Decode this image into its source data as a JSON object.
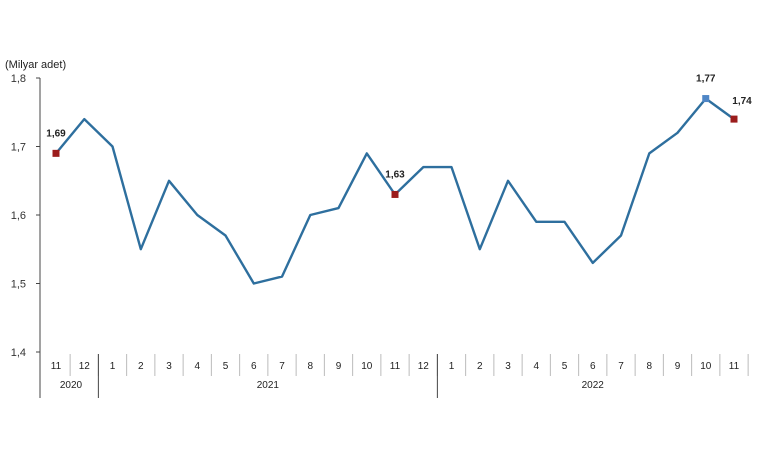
{
  "chart_data": {
    "type": "line",
    "title": "",
    "unit_label": "(Milyar adet)",
    "xlabel": "",
    "ylabel": "",
    "ylim": [
      1.4,
      1.8
    ],
    "yticks": [
      "1,4",
      "1,5",
      "1,6",
      "1,7",
      "1,8"
    ],
    "grid": false,
    "categories": [
      "11",
      "12",
      "1",
      "2",
      "3",
      "4",
      "5",
      "6",
      "7",
      "8",
      "9",
      "10",
      "11",
      "12",
      "1",
      "2",
      "3",
      "4",
      "5",
      "6",
      "7",
      "8",
      "9",
      "10",
      "11"
    ],
    "year_groups": [
      {
        "label": "2020",
        "start": 0,
        "end": 1
      },
      {
        "label": "2021",
        "start": 2,
        "end": 13
      },
      {
        "label": "2022",
        "start": 14,
        "end": 24
      }
    ],
    "series": [
      {
        "color": "#2e6f9e",
        "values": [
          1.69,
          1.74,
          1.7,
          1.55,
          1.65,
          1.6,
          1.57,
          1.5,
          1.51,
          1.6,
          1.61,
          1.69,
          1.63,
          1.67,
          1.67,
          1.55,
          1.65,
          1.59,
          1.59,
          1.53,
          1.57,
          1.69,
          1.72,
          1.77,
          1.74
        ]
      }
    ],
    "annotations": [
      {
        "index": 0,
        "label": "1,69",
        "marker_color": "#9b1c1c"
      },
      {
        "index": 12,
        "label": "1,63",
        "marker_color": "#9b1c1c"
      },
      {
        "index": 23,
        "label": "1,77",
        "marker_color": "#4f86c6"
      },
      {
        "index": 24,
        "label": "1,74",
        "marker_color": "#9b1c1c"
      }
    ]
  }
}
